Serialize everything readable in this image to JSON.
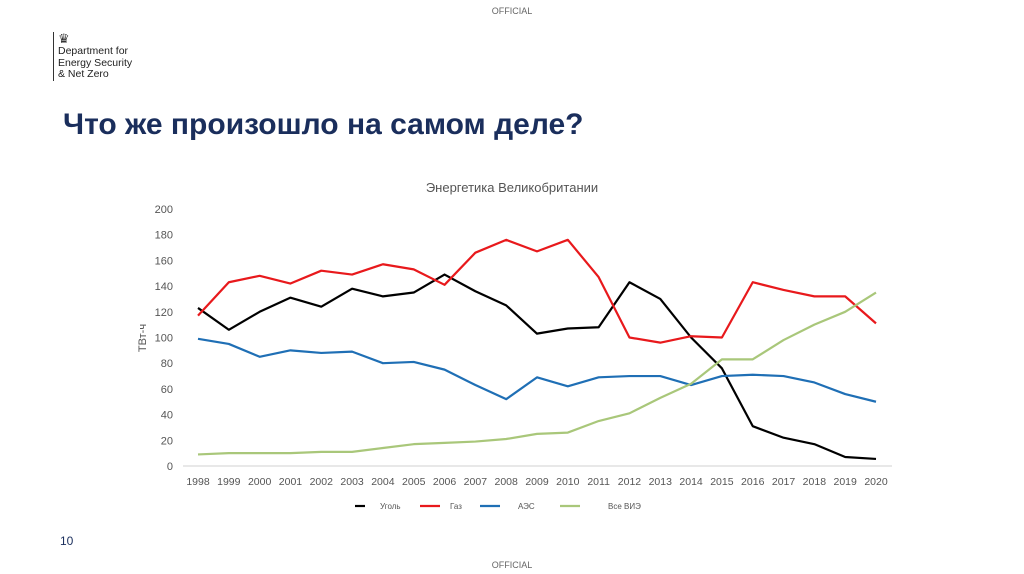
{
  "header": {
    "classification": "OFFICIAL",
    "logo_text": [
      "Department for",
      "Energy Security",
      "& Net Zero"
    ],
    "crest_icon": "royal-crest-icon"
  },
  "slide": {
    "title": "Что же произошло на самом деле?",
    "page_number": "10"
  },
  "footer": {
    "classification": "OFFICIAL"
  },
  "chart_data": {
    "type": "line",
    "title": "Энергетика Великобритании",
    "xlabel": "",
    "ylabel": "ТВт-ч",
    "ylim": [
      0,
      200
    ],
    "yticks": [
      0,
      20,
      40,
      60,
      80,
      100,
      120,
      140,
      160,
      180,
      200
    ],
    "grid": false,
    "legend_placement": "bottom",
    "x": [
      1998,
      1999,
      2000,
      2001,
      2002,
      2003,
      2004,
      2005,
      2006,
      2007,
      2008,
      2009,
      2010,
      2011,
      2012,
      2013,
      2014,
      2015,
      2016,
      2017,
      2018,
      2019,
      2020
    ],
    "series": [
      {
        "name": "Уголь",
        "color": "#000000",
        "values": [
          123,
          106,
          120,
          131,
          124,
          138,
          132,
          135,
          149,
          136,
          125,
          103,
          107,
          108,
          143,
          130,
          100,
          76,
          31,
          22,
          17,
          7,
          5.5
        ]
      },
      {
        "name": "Газ",
        "color": "#e8191c",
        "values": [
          117,
          143,
          148,
          142,
          152,
          149,
          157,
          153,
          141,
          166,
          176,
          167,
          176,
          147,
          100,
          96,
          101,
          100,
          143,
          137,
          132,
          132,
          111
        ]
      },
      {
        "name": "АЭС",
        "color": "#1f6fb5",
        "values": [
          99,
          95,
          85,
          90,
          88,
          89,
          80,
          81,
          75,
          63,
          52,
          69,
          62,
          69,
          70,
          70,
          63,
          70,
          71,
          70,
          65,
          56,
          50
        ]
      },
      {
        "name": "Все ВИЭ",
        "color": "#a9c77a",
        "values": [
          9,
          10,
          10,
          10,
          11,
          11,
          14,
          17,
          18,
          19,
          21,
          25,
          26,
          35,
          41,
          53,
          64,
          83,
          83,
          98,
          110,
          120,
          135
        ]
      }
    ]
  }
}
